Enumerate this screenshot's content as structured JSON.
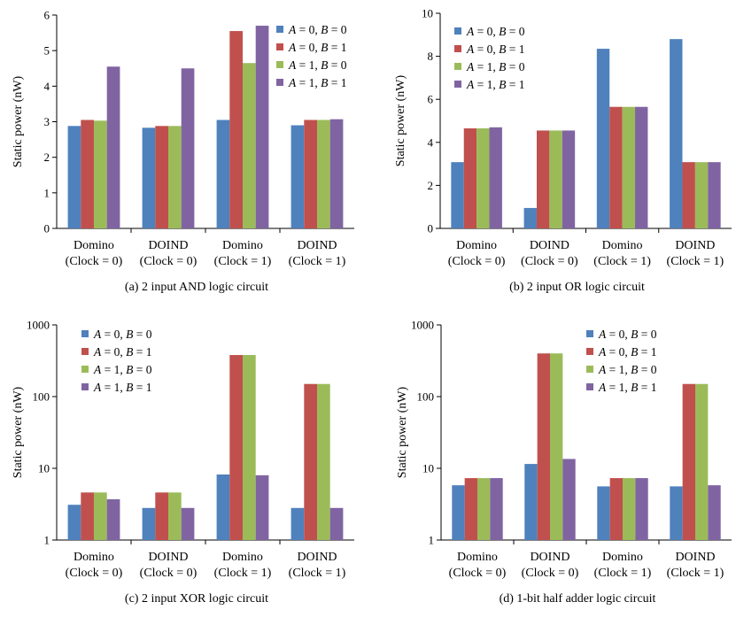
{
  "figure": {
    "series_names": [
      "A = 0, B = 0",
      "A = 0, B = 1",
      "A = 1, B = 0",
      "A = 1, B = 1"
    ],
    "colors": [
      "#4F81BD",
      "#C0504D",
      "#9BBB59",
      "#8064A2"
    ]
  },
  "chart_data": [
    {
      "type": "bar",
      "caption": "(a) 2 input AND logic circuit",
      "ylabel": "Static power (nW)",
      "ylim": [
        0,
        6
      ],
      "yticks": [
        "0",
        "1",
        "2",
        "3",
        "4",
        "5",
        "6"
      ],
      "yscale": "linear",
      "categories": [
        {
          "line1": "Domino",
          "line2": "(Clock = 0)"
        },
        {
          "line1": "DOIND",
          "line2": "(Clock = 0)"
        },
        {
          "line1": "Domino",
          "line2": "(Clock = 1)"
        },
        {
          "line1": "DOIND",
          "line2": "(Clock = 1)"
        }
      ],
      "legend_position": "top-right",
      "series": [
        {
          "name": "A = 0, B = 0",
          "values": [
            2.88,
            2.83,
            3.05,
            2.9
          ]
        },
        {
          "name": "A = 0, B = 1",
          "values": [
            3.05,
            2.88,
            5.55,
            3.05
          ]
        },
        {
          "name": "A = 1, B = 0",
          "values": [
            3.03,
            2.88,
            4.65,
            3.05
          ]
        },
        {
          "name": "A = 1, B = 1",
          "values": [
            4.55,
            4.5,
            5.7,
            3.07
          ]
        }
      ]
    },
    {
      "type": "bar",
      "caption": "(b) 2 input OR logic circuit",
      "ylabel": "Static power (nW)",
      "ylim": [
        0,
        10
      ],
      "yticks": [
        "0",
        "2",
        "4",
        "6",
        "8",
        "10"
      ],
      "yscale": "linear",
      "categories": [
        {
          "line1": "Domino",
          "line2": "(Clock = 0)"
        },
        {
          "line1": "DOIND",
          "line2": "(Clock = 0)"
        },
        {
          "line1": "Domino",
          "line2": "(Clock = 1)"
        },
        {
          "line1": "DOIND",
          "line2": "(Clock = 1)"
        }
      ],
      "legend_position": "top-left",
      "series": [
        {
          "name": "A = 0, B = 0",
          "values": [
            3.08,
            0.95,
            8.35,
            8.8
          ]
        },
        {
          "name": "A = 0, B = 1",
          "values": [
            4.65,
            4.55,
            5.65,
            3.08
          ]
        },
        {
          "name": "A = 1, B = 0",
          "values": [
            4.65,
            4.55,
            5.65,
            3.08
          ]
        },
        {
          "name": "A = 1, B = 1",
          "values": [
            4.7,
            4.55,
            5.65,
            3.08
          ]
        }
      ]
    },
    {
      "type": "bar",
      "caption": "(c) 2 input XOR logic circuit",
      "ylabel": "Static power (nW)",
      "ylim": [
        1,
        1000
      ],
      "yticks": [
        "1",
        "10",
        "100",
        "1000"
      ],
      "yscale": "log",
      "categories": [
        {
          "line1": "Domino",
          "line2": "(Clock = 0)"
        },
        {
          "line1": "DOIND",
          "line2": "(Clock = 0)"
        },
        {
          "line1": "Domino",
          "line2": "(Clock = 1)"
        },
        {
          "line1": "DOIND",
          "line2": "(Clock = 1)"
        }
      ],
      "legend_position": "top-left",
      "series": [
        {
          "name": "A = 0, B = 0",
          "values": [
            3.1,
            2.8,
            8.2,
            2.8
          ]
        },
        {
          "name": "A = 0, B = 1",
          "values": [
            4.6,
            4.6,
            380,
            150
          ]
        },
        {
          "name": "A = 1, B = 0",
          "values": [
            4.6,
            4.6,
            380,
            150
          ]
        },
        {
          "name": "A = 1, B = 1",
          "values": [
            3.7,
            2.8,
            8.0,
            2.8
          ]
        }
      ]
    },
    {
      "type": "bar",
      "caption": "(d) 1-bit half adder logic circuit",
      "ylabel": "Static power (nW)",
      "ylim": [
        1,
        1000
      ],
      "yticks": [
        "1",
        "10",
        "100",
        "1000"
      ],
      "yscale": "log",
      "categories": [
        {
          "line1": "Domino",
          "line2": "(Clock = 0)"
        },
        {
          "line1": "DOIND",
          "line2": "(Clock = 0)"
        },
        {
          "line1": "Domino",
          "line2": "(Clock = 1)"
        },
        {
          "line1": "DOIND",
          "line2": "(Clock = 1)"
        }
      ],
      "legend_position": "top-right",
      "series": [
        {
          "name": "A = 0, B = 0",
          "values": [
            5.8,
            11.5,
            5.6,
            5.6
          ]
        },
        {
          "name": "A = 0, B = 1",
          "values": [
            7.3,
            400,
            7.3,
            150
          ]
        },
        {
          "name": "A = 1, B = 0",
          "values": [
            7.3,
            400,
            7.3,
            150
          ]
        },
        {
          "name": "A = 1, B = 1",
          "values": [
            7.3,
            13.5,
            7.3,
            5.8
          ]
        }
      ]
    }
  ]
}
